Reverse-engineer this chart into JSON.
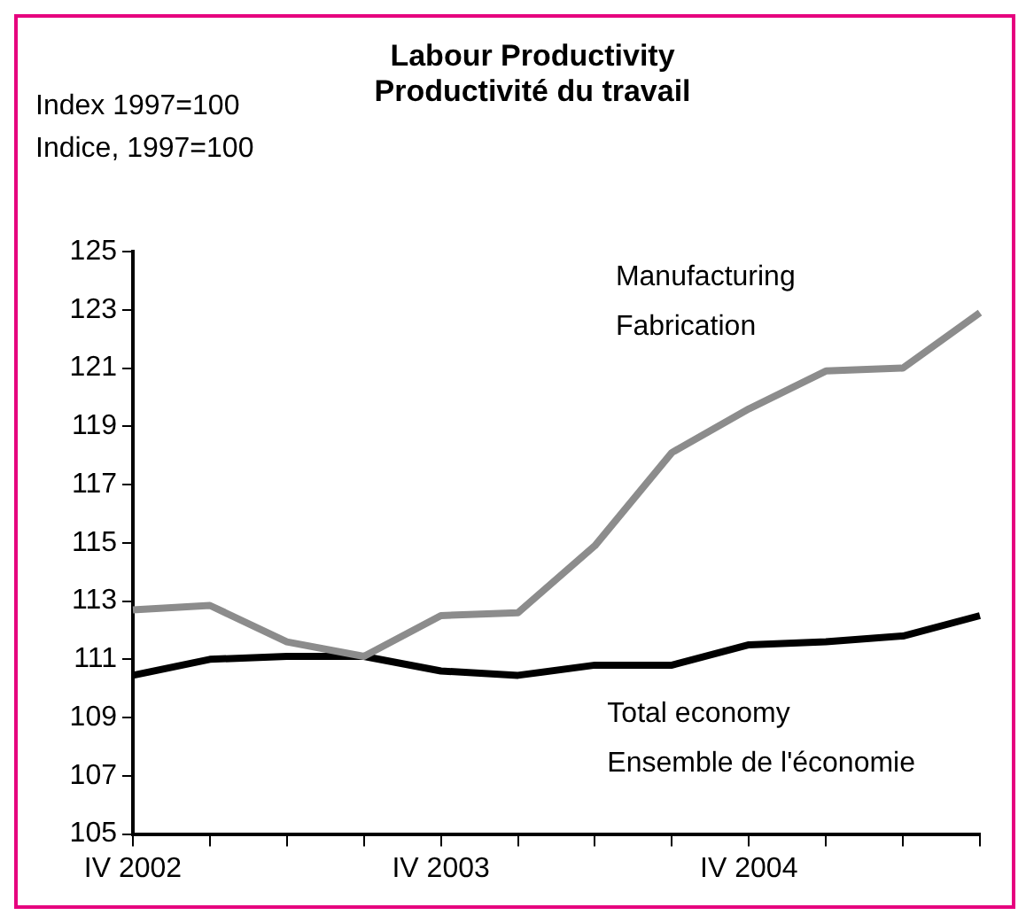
{
  "chart_data": {
    "type": "line",
    "title": "Labour Productivity\nProductivité du travail",
    "ylabel": "Index 1997=100\nIndice, 1997=100",
    "categories": [
      "IV 2002",
      null,
      null,
      null,
      "IV 2003",
      null,
      null,
      null,
      "IV 2004",
      null,
      null,
      null
    ],
    "series": [
      {
        "name": "Manufacturing\nFabrication",
        "color": "#8c8c8c",
        "values": [
          112.7,
          112.85,
          111.6,
          111.1,
          112.5,
          112.6,
          114.9,
          118.1,
          119.6,
          120.9,
          121.0,
          122.9
        ]
      },
      {
        "name": "Total economy\nEnsemble de l'économie",
        "color": "#000000",
        "values": [
          110.45,
          111.0,
          111.1,
          111.1,
          110.6,
          110.45,
          110.8,
          110.8,
          111.5,
          111.6,
          111.8,
          112.5
        ]
      }
    ],
    "ylim": [
      105,
      125
    ],
    "yticks": [
      105,
      107,
      109,
      111,
      113,
      115,
      117,
      119,
      121,
      123,
      125
    ],
    "grid": false,
    "legend": false,
    "marker": "none",
    "line_style": "solid"
  }
}
